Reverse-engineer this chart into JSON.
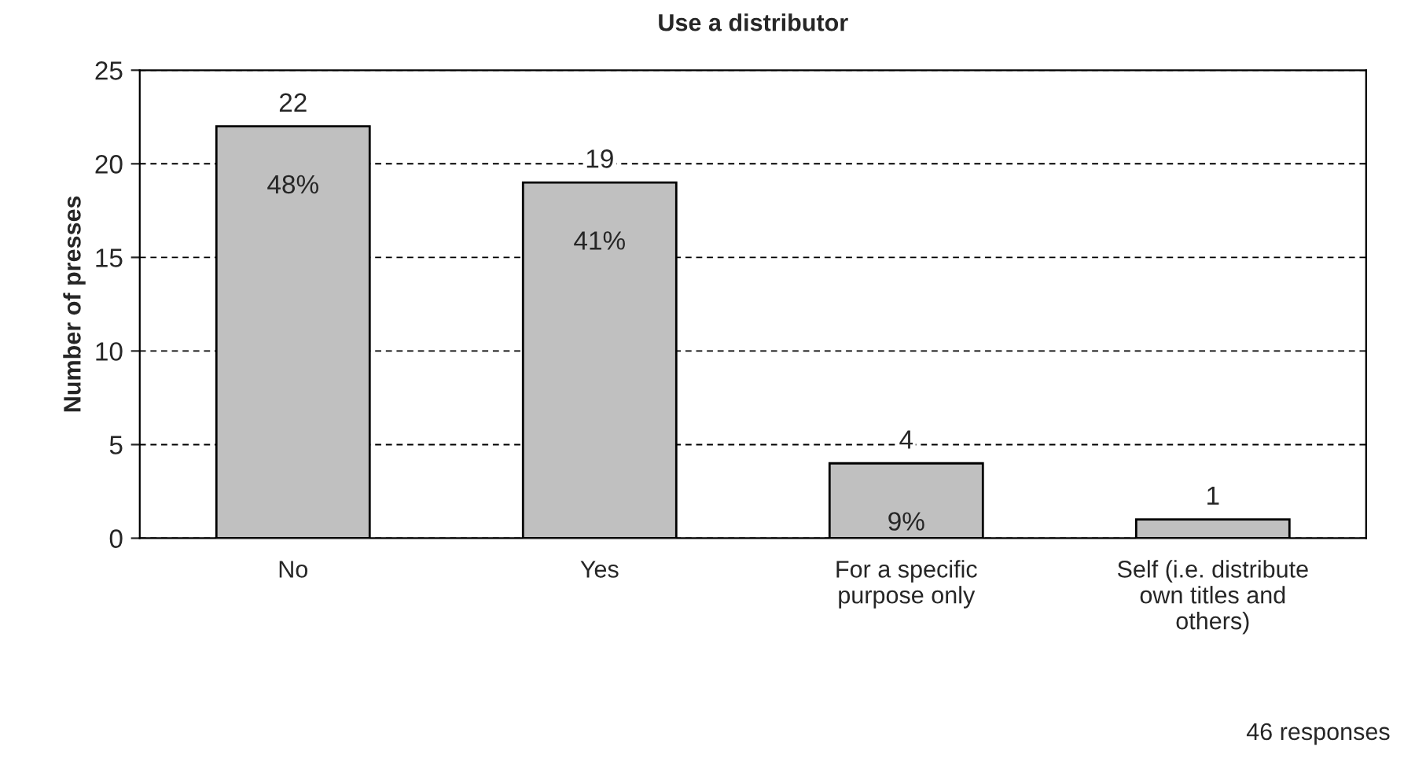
{
  "chart_data": {
    "type": "bar",
    "title": "Use a distributor",
    "ylabel": "Number of presses",
    "categories": [
      "No",
      "Yes",
      "For a specific\npurpose only",
      "Self (i.e. distribute\nown titles and\nothers)"
    ],
    "values": [
      22,
      19,
      4,
      1
    ],
    "value_labels": [
      "22",
      "19",
      "4",
      "1"
    ],
    "color": "#c0c0c0",
    "ylim": [
      0,
      25
    ],
    "yticks": [
      0,
      5,
      10,
      15,
      20,
      25
    ],
    "grid": "y",
    "annotations": [
      {
        "text": "48%",
        "x": "No",
        "y": 22
      },
      {
        "text": "41%",
        "x": "Yes",
        "y": 19
      },
      {
        "text": "9%",
        "x": "For a specific\npurpose only",
        "y": 4
      },
      "46 responses"
    ]
  }
}
